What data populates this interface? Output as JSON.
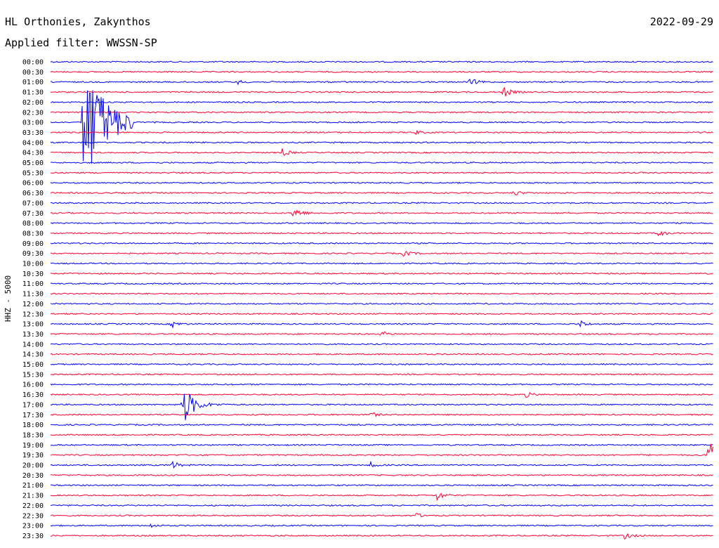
{
  "header": {
    "station": "HL Orthonies, Zakynthos",
    "filter": "Applied filter: WWSSN-SP",
    "date": "2022-09-29"
  },
  "chart_data": {
    "type": "line",
    "ylabel": "HHZ - 5000",
    "row_labels": [
      "00:00",
      "00:30",
      "01:00",
      "01:30",
      "02:00",
      "02:30",
      "03:00",
      "03:30",
      "04:00",
      "04:30",
      "05:00",
      "05:30",
      "06:00",
      "06:30",
      "07:00",
      "07:30",
      "08:00",
      "08:30",
      "09:00",
      "09:30",
      "10:00",
      "10:30",
      "11:00",
      "11:30",
      "12:00",
      "12:30",
      "13:00",
      "13:30",
      "14:00",
      "14:30",
      "15:00",
      "15:30",
      "16:00",
      "16:30",
      "17:00",
      "17:30",
      "18:00",
      "18:30",
      "19:00",
      "19:30",
      "20:00",
      "20:30",
      "21:00",
      "21:30",
      "22:00",
      "22:30",
      "23:00",
      "23:30"
    ],
    "row_colors": [
      "#0000ff",
      "#ff0033"
    ],
    "row_minutes": 30,
    "events": [
      {
        "row": "01:00",
        "minute": 8.5,
        "amp": 3
      },
      {
        "row": "01:00",
        "minute": 19,
        "amp": 6
      },
      {
        "row": "01:30",
        "minute": 20.5,
        "amp": 8
      },
      {
        "row": "03:00",
        "minute": 1.5,
        "amp": 95
      },
      {
        "row": "03:30",
        "minute": 16.5,
        "amp": 3
      },
      {
        "row": "04:30",
        "minute": 10.5,
        "amp": 6
      },
      {
        "row": "06:30",
        "minute": 21,
        "amp": 4
      },
      {
        "row": "07:30",
        "minute": 11,
        "amp": 10
      },
      {
        "row": "08:30",
        "minute": 27.5,
        "amp": 5
      },
      {
        "row": "09:30",
        "minute": 16,
        "amp": 5
      },
      {
        "row": "13:00",
        "minute": 5.5,
        "amp": 5
      },
      {
        "row": "13:00",
        "minute": 24,
        "amp": 5
      },
      {
        "row": "13:30",
        "minute": 15,
        "amp": 4
      },
      {
        "row": "17:00",
        "minute": 6,
        "amp": 30
      },
      {
        "row": "16:30",
        "minute": 21.5,
        "amp": 4
      },
      {
        "row": "17:30",
        "minute": 14.5,
        "amp": 4
      },
      {
        "row": "20:00",
        "minute": 5.5,
        "amp": 6
      },
      {
        "row": "20:00",
        "minute": 14.5,
        "amp": 4
      },
      {
        "row": "19:30",
        "minute": 29.8,
        "amp": 30
      },
      {
        "row": "21:30",
        "minute": 17.5,
        "amp": 7
      },
      {
        "row": "22:30",
        "minute": 16.5,
        "amp": 4
      },
      {
        "row": "23:00",
        "minute": 4.5,
        "amp": 3
      },
      {
        "row": "23:30",
        "minute": 26,
        "amp": 5
      }
    ]
  }
}
